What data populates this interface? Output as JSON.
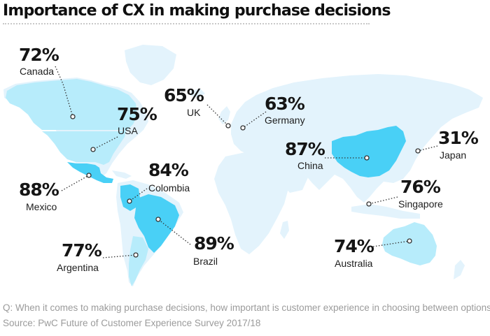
{
  "title": "Importance of CX in making purchase decisions",
  "colors": {
    "land": "#e3f3fc",
    "highlight_strong": "#49d0f6",
    "highlight_light": "#b7ecfb",
    "leader": "#333333",
    "footnote": "#9b9b9b"
  },
  "countries": [
    {
      "id": "canada",
      "name": "Canada",
      "value": "72%"
    },
    {
      "id": "usa",
      "name": "USA",
      "value": "75%"
    },
    {
      "id": "mexico",
      "name": "Mexico",
      "value": "88%"
    },
    {
      "id": "colombia",
      "name": "Colombia",
      "value": "84%"
    },
    {
      "id": "argentina",
      "name": "Argentina",
      "value": "77%"
    },
    {
      "id": "brazil",
      "name": "Brazil",
      "value": "89%"
    },
    {
      "id": "uk",
      "name": "UK",
      "value": "65%"
    },
    {
      "id": "germany",
      "name": "Germany",
      "value": "63%"
    },
    {
      "id": "china",
      "name": "China",
      "value": "87%"
    },
    {
      "id": "japan",
      "name": "Japan",
      "value": "31%"
    },
    {
      "id": "singapore",
      "name": "Singapore",
      "value": "76%"
    },
    {
      "id": "australia",
      "name": "Australia",
      "value": "74%"
    }
  ],
  "footnotes": {
    "question": "Q: When it comes to making purchase decisions, how important is customer experience in choosing between options?",
    "source": "Source: PwC Future of Customer Experience Survey 2017/18"
  }
}
